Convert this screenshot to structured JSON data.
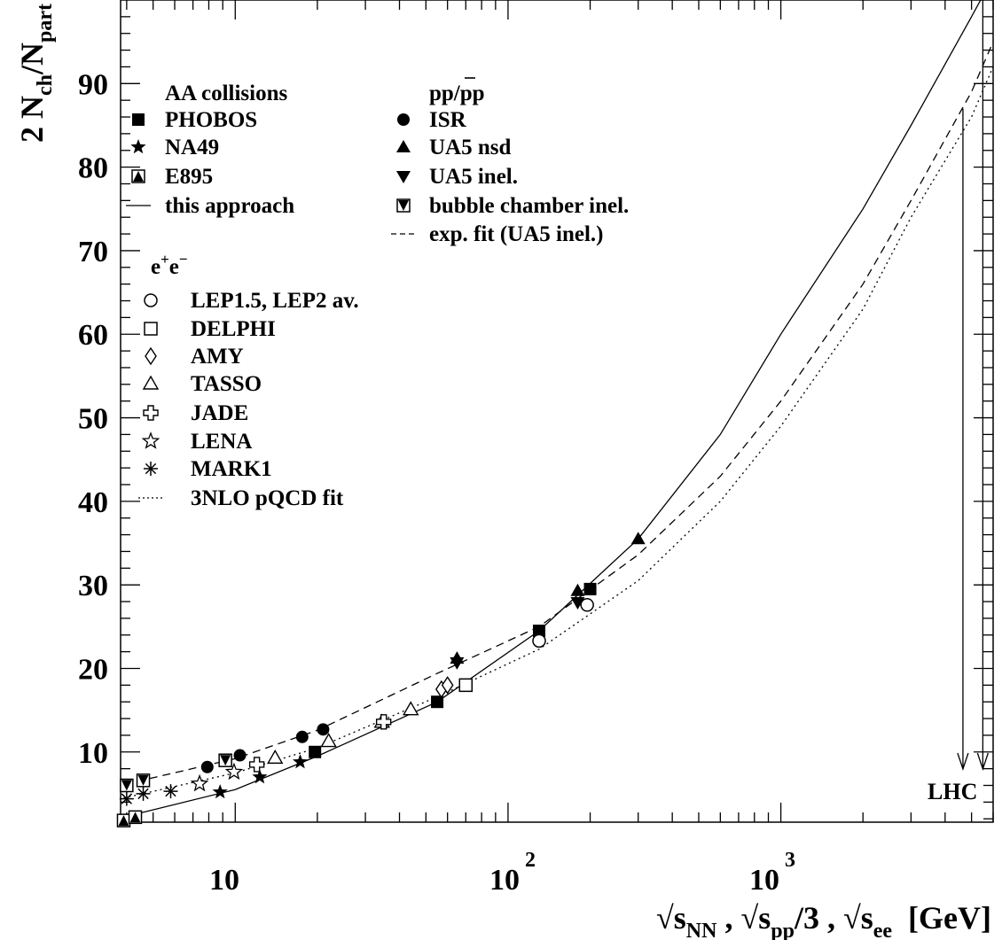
{
  "chart_data": {
    "type": "scatter",
    "x_scale": "log",
    "xlim": [
      3.8,
      6000
    ],
    "ylim": [
      1.6,
      100
    ],
    "grid": false,
    "legend_position": "top-left",
    "y_axis": {
      "label_main": "2 N",
      "label_sub1": "ch",
      "label_mid": "/N",
      "label_sub2": "part",
      "ticks": [
        10,
        20,
        30,
        40,
        50,
        60,
        70,
        80,
        90
      ],
      "tick_labels": [
        "10",
        "20",
        "30",
        "40",
        "50",
        "60",
        "70",
        "80",
        "90"
      ]
    },
    "x_axis": {
      "label": {
        "r1": "√s",
        "s1": "NN",
        "m1": " , √s",
        "s2": "pp",
        "m2": "/3 , √s",
        "s3": "ee",
        "unit": "  [GeV]"
      },
      "ticks": [
        10,
        100,
        1000
      ],
      "tick_label_10": "10",
      "tick_label_100_base": "10",
      "tick_label_100_exp": "2",
      "tick_label_1000_base": "10",
      "tick_label_1000_exp": "3"
    },
    "legend": {
      "aa_title": "AA collisions",
      "pp_title_parts": [
        "pp/",
        "p",
        "p"
      ],
      "ee_title_parts": [
        "e",
        "+",
        "e",
        "−"
      ],
      "entries": [
        {
          "label": "PHOBOS",
          "marker": "square-filled"
        },
        {
          "label": "NA49",
          "marker": "star-filled"
        },
        {
          "label": "E895",
          "marker": "square-half-triangle"
        },
        {
          "label": "this approach",
          "marker": "line-solid"
        },
        {
          "label": "ISR",
          "marker": "circle-filled"
        },
        {
          "label": "UA5 nsd",
          "marker": "triangle-up-filled"
        },
        {
          "label": "UA5 inel.",
          "marker": "triangle-down-filled"
        },
        {
          "label": "bubble chamber inel.",
          "marker": "square-half-triangle-down"
        },
        {
          "label": "exp. fit (UA5 inel.)",
          "marker": "line-dashed"
        },
        {
          "label": "LEP1.5, LEP2 av.",
          "marker": "circle-open"
        },
        {
          "label": "DELPHI",
          "marker": "square-open"
        },
        {
          "label": "AMY",
          "marker": "diamond-open"
        },
        {
          "label": "TASSO",
          "marker": "triangle-open"
        },
        {
          "label": "JADE",
          "marker": "cross-open"
        },
        {
          "label": "LENA",
          "marker": "star-open"
        },
        {
          "label": "MARK1",
          "marker": "asterisk"
        },
        {
          "label": "3NLO pQCD fit",
          "marker": "line-dotted"
        }
      ]
    },
    "annotation": {
      "label": "LHC",
      "x": [
        4650,
        5500
      ]
    },
    "series": [
      {
        "name": "PHOBOS",
        "marker": "square-filled",
        "points": [
          [
            55,
            16
          ],
          [
            130,
            24.5
          ],
          [
            200,
            29.5
          ],
          [
            19.6,
            10
          ]
        ]
      },
      {
        "name": "NA49",
        "marker": "star-filled",
        "points": [
          [
            8.8,
            5.2
          ],
          [
            12.3,
            7
          ],
          [
            17.3,
            8.8
          ]
        ]
      },
      {
        "name": "E895",
        "marker": "square-half-triangle",
        "points": [
          [
            3.9,
            1.8
          ],
          [
            4.3,
            2.2
          ]
        ]
      },
      {
        "name": "ISR",
        "marker": "circle-filled",
        "points": [
          [
            7.9,
            8.2
          ],
          [
            10.4,
            9.6
          ],
          [
            17.6,
            11.8
          ],
          [
            21,
            12.7
          ]
        ]
      },
      {
        "name": "UA5 nsd",
        "marker": "triangle-up-filled",
        "points": [
          [
            65,
            21.2
          ],
          [
            180,
            29.3
          ],
          [
            300,
            35.5
          ]
        ]
      },
      {
        "name": "UA5 inel.",
        "marker": "triangle-down-filled",
        "points": [
          [
            65,
            20.7
          ],
          [
            180,
            27.9
          ]
        ]
      },
      {
        "name": "bubble chamber inel.",
        "marker": "square-half-triangle-down",
        "points": [
          [
            4.0,
            6.0
          ],
          [
            4.6,
            6.6
          ],
          [
            9.2,
            9.0
          ]
        ]
      },
      {
        "name": "LEP1.5, LEP2 av.",
        "marker": "circle-open",
        "points": [
          [
            130,
            23.3
          ],
          [
            195,
            27.6
          ]
        ]
      },
      {
        "name": "DELPHI",
        "marker": "square-open",
        "points": [
          [
            70,
            18
          ]
        ]
      },
      {
        "name": "AMY",
        "marker": "diamond-open",
        "points": [
          [
            57,
            17.5
          ],
          [
            60,
            18
          ]
        ]
      },
      {
        "name": "TASSO",
        "marker": "triangle-open",
        "points": [
          [
            14,
            9.3
          ],
          [
            22,
            11.3
          ],
          [
            34.5,
            13.6
          ],
          [
            44,
            15.1
          ]
        ]
      },
      {
        "name": "JADE",
        "marker": "cross-open",
        "points": [
          [
            12,
            8.5
          ],
          [
            35,
            13.6
          ]
        ]
      },
      {
        "name": "LENA",
        "marker": "star-open",
        "points": [
          [
            7.4,
            6.2
          ],
          [
            9.9,
            7.6
          ]
        ]
      },
      {
        "name": "MARK1",
        "marker": "asterisk",
        "points": [
          [
            4.0,
            4.4
          ],
          [
            4.6,
            5.0
          ],
          [
            5.8,
            5.3
          ]
        ]
      }
    ],
    "curves": [
      {
        "name": "this approach",
        "style": "solid",
        "points": [
          [
            3.9,
            2.2
          ],
          [
            10,
            5.5
          ],
          [
            20,
            9.5
          ],
          [
            55,
            16
          ],
          [
            130,
            24.5
          ],
          [
            300,
            35.5
          ],
          [
            600,
            48
          ],
          [
            1000,
            60
          ],
          [
            2000,
            75
          ],
          [
            3000,
            85
          ],
          [
            5000,
            98
          ],
          [
            5400,
            100
          ]
        ]
      },
      {
        "name": "exp. fit (UA5 inel.)",
        "style": "dashed",
        "points": [
          [
            3.9,
            6.1
          ],
          [
            10,
            9.2
          ],
          [
            20,
            12.6
          ],
          [
            55,
            19.4
          ],
          [
            130,
            25
          ],
          [
            300,
            33.6
          ],
          [
            600,
            43
          ],
          [
            1000,
            52
          ],
          [
            2000,
            66
          ],
          [
            3000,
            76
          ],
          [
            5000,
            89
          ],
          [
            6000,
            95
          ]
        ]
      },
      {
        "name": "3NLO pQCD fit",
        "style": "dotted",
        "points": [
          [
            3.9,
            4.5
          ],
          [
            10,
            7.5
          ],
          [
            20,
            10.5
          ],
          [
            55,
            16.6
          ],
          [
            130,
            22.3
          ],
          [
            300,
            30.5
          ],
          [
            600,
            40
          ],
          [
            1000,
            49
          ],
          [
            2000,
            63
          ],
          [
            3000,
            74
          ],
          [
            5000,
            86
          ],
          [
            6000,
            92
          ]
        ]
      }
    ]
  }
}
